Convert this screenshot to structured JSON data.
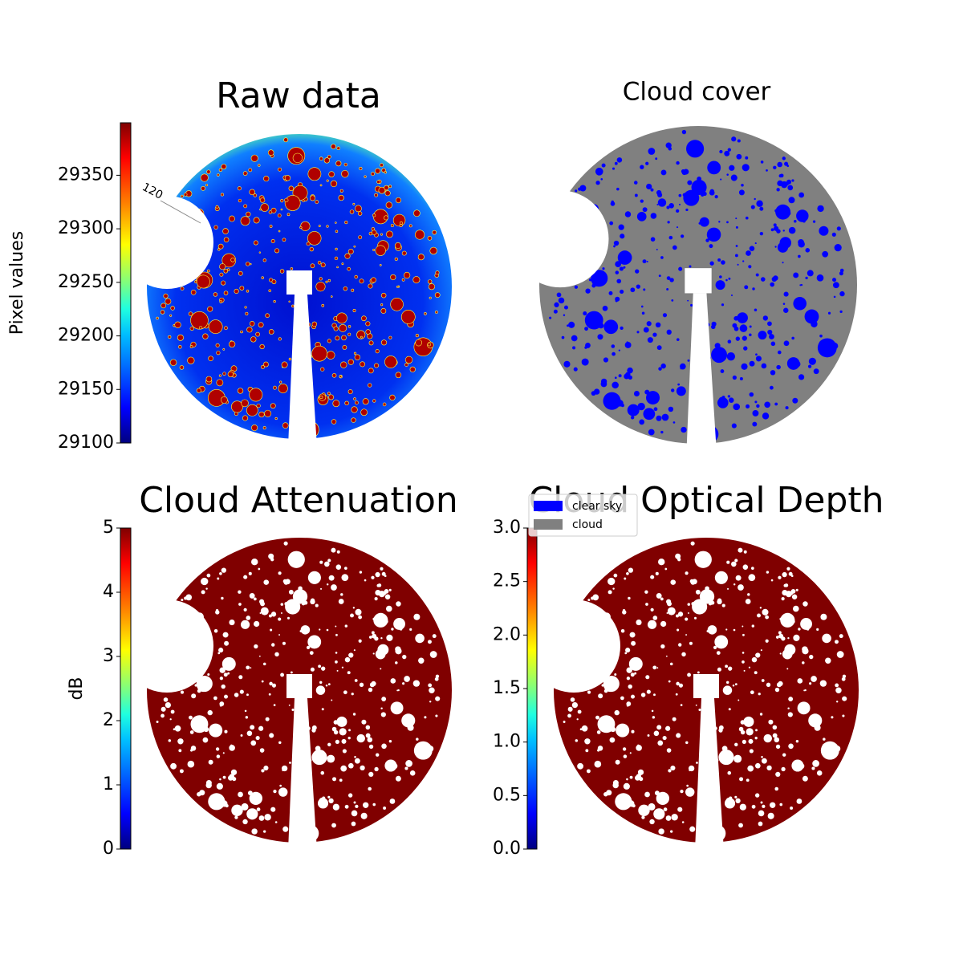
{
  "chart_data": [
    {
      "type": "heatmap",
      "title": "Raw data",
      "colorbar_label": "Pixel values",
      "clim": [
        29100,
        29399
      ],
      "cticks": [
        29100,
        29150,
        29200,
        29250,
        29300,
        29350
      ],
      "colormap": "jet",
      "annotations": [
        "120"
      ]
    },
    {
      "type": "categorical",
      "title": "Cloud cover",
      "series": [
        {
          "name": "clear sky",
          "color": "#0000ff"
        },
        {
          "name": "cloud",
          "color": "#808080"
        }
      ]
    },
    {
      "type": "heatmap",
      "title": "Cloud Attenuation",
      "colorbar_label": "dB",
      "clim": [
        0,
        5
      ],
      "cticks": [
        0,
        1,
        2,
        3,
        4,
        5
      ],
      "colormap": "jet",
      "color": "#800000"
    },
    {
      "type": "heatmap",
      "title": "Cloud Optical Depth",
      "clim": [
        0,
        3
      ],
      "cticks": [
        {
          "value": 0,
          "label": "0.0"
        },
        {
          "value": 0.5,
          "label": "0.5"
        },
        {
          "value": 1,
          "label": "1.0"
        },
        {
          "value": 1.5,
          "label": "1.5"
        },
        {
          "value": 2,
          "label": "2.0"
        },
        {
          "value": 2.5,
          "label": "2.5"
        },
        {
          "value": 3,
          "label": "3.0"
        }
      ],
      "colormap": "jet",
      "color": "#800000"
    }
  ]
}
